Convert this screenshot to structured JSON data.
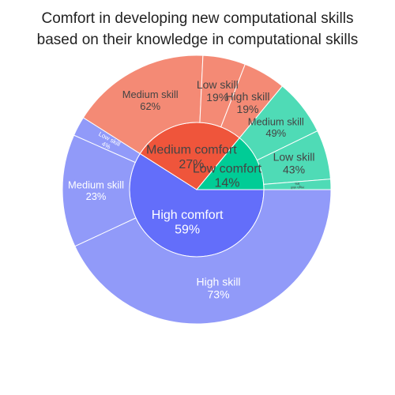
{
  "chart_data": {
    "type": "sunburst",
    "title_lines": [
      "Comfort in developing new computational skills",
      "based on their knowledge in computational skills"
    ],
    "start_angle_deg": 90,
    "direction": "clockwise",
    "inner": [
      {
        "key": "high",
        "name": "High comfort",
        "label": "High comfort\n59%",
        "value": 59,
        "color": "#636efa",
        "text_color": "#ffffff",
        "children": [
          {
            "name": "High skill",
            "label": "High skill\n73%",
            "value": 73,
            "text_color": "#ffffff"
          },
          {
            "name": "Medium skill",
            "label": "Medium skill\n23%",
            "value": 23,
            "text_color": "#ffffff"
          },
          {
            "name": "Low skill",
            "label": "Low skill\n4%",
            "value": 4,
            "text_color": "#ffffff"
          }
        ]
      },
      {
        "key": "medium",
        "name": "Medium comfort",
        "label": "Medium comfort\n27%",
        "value": 27,
        "color": "#ef553b",
        "text_color": "#444444",
        "children": [
          {
            "name": "Medium skill",
            "label": "Medium skill\n62%",
            "value": 62,
            "text_color": "#444444"
          },
          {
            "name": "Low skill",
            "label": "Low skill\n19%",
            "value": 19,
            "text_color": "#444444"
          },
          {
            "name": "High skill",
            "label": "High skill\n19%",
            "value": 19,
            "text_color": "#444444"
          }
        ]
      },
      {
        "key": "low",
        "name": "Low comfort",
        "label": "Low comfort\n14%",
        "value": 14,
        "color": "#00cc96",
        "text_color": "#444444",
        "children": [
          {
            "name": "Medium skill",
            "label": "Medium skill\n49%",
            "value": 49,
            "text_color": "#444444"
          },
          {
            "name": "Low skill",
            "label": "Low skill\n43%",
            "value": 43,
            "text_color": "#444444"
          },
          {
            "name": "High skill",
            "label": "High skill\n9%",
            "value": 9,
            "text_color": "#444444"
          }
        ]
      }
    ],
    "outer_colors": {
      "high": "#919af9",
      "medium": "#f48a75",
      "low": "#4fdbb6"
    }
  }
}
